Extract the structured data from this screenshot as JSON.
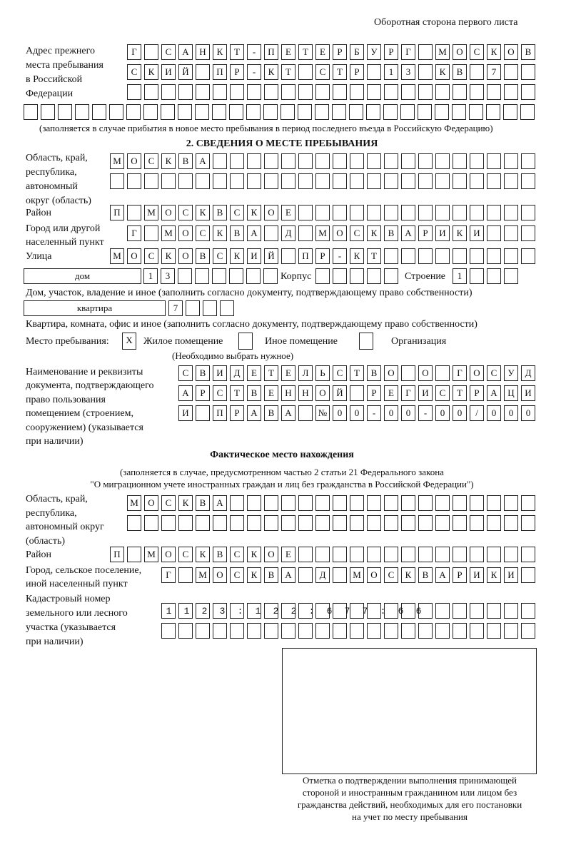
{
  "header": "Оборотная сторона первого листа",
  "prev_address": {
    "label": [
      "Адрес прежнего",
      "места пребывания",
      "в Российской",
      "Федерации"
    ],
    "rows": [
      "Г САНКТ-ПЕТЕРБУРГ МОСКОВ",
      "СКИЙ ПР-КТ СТР 13 КВ 7",
      "",
      ""
    ],
    "note": "(заполняется в случае прибытия в новое место пребывания в период последнего въезда в Российскую Федерацию)"
  },
  "section2": {
    "title": "2. СВЕДЕНИЯ О МЕСТЕ ПРЕБЫВАНИЯ",
    "region_label": [
      "Область, край,",
      "республика,",
      "автономный",
      "округ (область)"
    ],
    "region_rows": [
      "МОСКВА",
      ""
    ],
    "district_label": "Район",
    "district": "П МОСКВСКОЕ",
    "city_label": [
      "Город или другой",
      "населенный пункт"
    ],
    "city": "Г МОСКВА Д МОСКВАРИКИ",
    "street_label": "Улица",
    "street": "МОСКОВСКИЙ ПР-КТ",
    "house_type": "дом",
    "house": "13",
    "korpus_label": "Корпус",
    "korpus": "",
    "building_label": "Строение",
    "building": "1",
    "house_note": "Дом, участок, владение и иное (заполнить согласно документу, подтверждающему право собственности)",
    "flat_type": "квартира",
    "flat": "7",
    "flat_note": "Квартира, комната, офис и иное (заполнить согласно документу, подтверждающему право собственности)",
    "stay_label": "Место пребывания:",
    "stay_options": [
      {
        "label": "Жилое помещение",
        "mark": "X"
      },
      {
        "label": "Иное помещение",
        "mark": ""
      },
      {
        "label": "Организация",
        "mark": ""
      }
    ],
    "stay_note": "(Необходимо выбрать нужное)",
    "doc_label": [
      "Наименование и реквизиты",
      "документа, подтверждающего",
      "право пользования",
      "помещением (строением,",
      "сооружением) (указывается",
      "при наличии)"
    ],
    "doc_rows": [
      "СВИДЕТЕЛЬСТВО О ГОСУД",
      "АРСТВЕННОЙ РЕГИСТРАЦИ",
      "И ПРАВА №00-00-00/000"
    ]
  },
  "actual": {
    "title": "Фактическое место нахождения",
    "note": [
      "(заполняется в случае, предусмотренном частью 2 статьи 21 Федерального закона",
      "\"О миграционном учете иностранных граждан и лиц без гражданства в Российской Федерации\")"
    ],
    "region_label": [
      "Область, край,",
      "республика,",
      "автономный округ",
      "(область)"
    ],
    "region_rows": [
      "МОСКВА",
      ""
    ],
    "district_label": "Район",
    "district": "П МОСКВСКОЕ",
    "city_label": [
      "Город, сельское поселение,",
      "иной населенный пункт"
    ],
    "city": "Г МОСКВА Д МОСКВАРИКИ",
    "cadastral_label": [
      "Кадастровый номер",
      "земельного или лесного",
      "участка (указывается",
      "при наличии)"
    ],
    "cadastral_rows": [
      "1123:122:677:66",
      ""
    ]
  },
  "confirmation_note": [
    "Отметка о подтверждении выполнения принимающей",
    "стороной и иностранным гражданином или лицом без",
    "гражданства действий, необходимых для его постановки",
    "на учет по месту пребывания"
  ]
}
